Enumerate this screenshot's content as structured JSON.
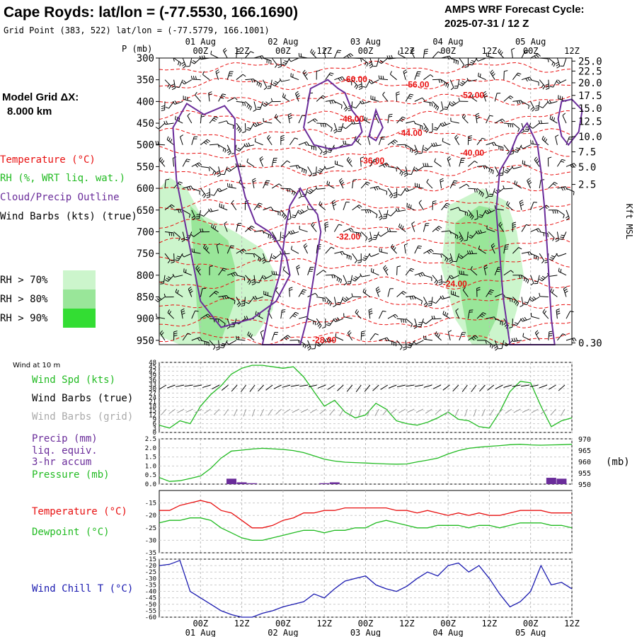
{
  "header": {
    "title": "Cape Royds:  lat/lon = (-77.5530, 166.1690)",
    "grid_point": "Grid Point (383, 522) lat/lon = (-77.5779, 166.1001)",
    "cycle_line1": "AMPS WRF Forecast Cycle:",
    "cycle_line2": "2025-07-31 / 12  Z"
  },
  "time_axis": {
    "ticks": [
      "00Z",
      "12Z",
      "00Z",
      "12Z",
      "00Z",
      "12Z",
      "00Z",
      "12Z",
      "00Z",
      "12Z"
    ],
    "dates": [
      "01 Aug",
      "02 Aug",
      "03 Aug",
      "04 Aug",
      "05 Aug"
    ],
    "hours_from_start": [
      12,
      24,
      36,
      48,
      60,
      72,
      84,
      96,
      108,
      120
    ],
    "date_hours": [
      12,
      36,
      60,
      84,
      108
    ],
    "start": "2025-07-31 12Z",
    "end": "2025-08-05 12Z"
  },
  "legend": {
    "model_grid": "Model Grid ΔX:",
    "model_dx": "8.000 km",
    "temperature": "Temperature (°C)",
    "rh": "RH (%, WRT liq. wat.)",
    "cloud": "Cloud/Precip Outline",
    "barbs": "Wind Barbs (kts) (true)",
    "rh_levels": [
      {
        "label": "RH > 70%",
        "color": "#ccf5cc"
      },
      {
        "label": "RH > 80%",
        "color": "#99e699"
      },
      {
        "label": "RH > 90%",
        "color": "#33dd33"
      }
    ]
  },
  "colors": {
    "temperature": "#e81010",
    "rh": "#22bb22",
    "cloud": "#6a2c9a",
    "wind_speed": "#22bb22",
    "barbs_true": "#000000",
    "barbs_grid": "#999999",
    "precip": "#6a2c9a",
    "pressure": "#22bb22",
    "dewpoint": "#22bb22",
    "wind_chill": "#1a1ab0"
  },
  "chart_data": [
    {
      "type": "line",
      "panel": "cross_section",
      "ylabel": "P (mb)",
      "ylabel_right": "Kft MSL",
      "y_ticks": [
        300,
        350,
        400,
        450,
        500,
        550,
        600,
        650,
        700,
        750,
        800,
        850,
        900,
        950
      ],
      "ylim": [
        300,
        960
      ],
      "kft_ticks": [
        {
          "p": 307,
          "label": "25.0"
        },
        {
          "p": 330,
          "label": "22.5"
        },
        {
          "p": 357,
          "label": "20.0"
        },
        {
          "p": 386,
          "label": "17.5"
        },
        {
          "p": 416,
          "label": "15.0"
        },
        {
          "p": 446,
          "label": "12.5"
        },
        {
          "p": 481,
          "label": "10.0"
        },
        {
          "p": 516,
          "label": "7.5"
        },
        {
          "p": 551,
          "label": "5.0"
        },
        {
          "p": 591,
          "label": "2.5"
        },
        {
          "p": 956,
          "label": "0.30"
        }
      ],
      "temperature_labels": [
        {
          "t": 57,
          "p": 355,
          "label": "-60.00"
        },
        {
          "t": 75,
          "p": 368,
          "label": "-56.00"
        },
        {
          "t": 91,
          "p": 392,
          "label": "-52.00"
        },
        {
          "t": 56,
          "p": 447,
          "label": "-48.00"
        },
        {
          "t": 73,
          "p": 479,
          "label": "-44.00"
        },
        {
          "t": 91,
          "p": 525,
          "label": "-40.00"
        },
        {
          "t": 62,
          "p": 543,
          "label": "-36.00"
        },
        {
          "t": 55,
          "p": 718,
          "label": "-32.00"
        },
        {
          "t": 86,
          "p": 826,
          "label": "-24.00"
        },
        {
          "t": 48,
          "p": 956,
          "label": "-28.00"
        }
      ],
      "rh_regions": [
        {
          "level": 70,
          "points": [
            [
              0,
              600
            ],
            [
              3,
              575
            ],
            [
              8,
              600
            ],
            [
              12,
              660
            ],
            [
              22,
              700
            ],
            [
              30,
              740
            ],
            [
              34,
              800
            ],
            [
              33,
              880
            ],
            [
              28,
              940
            ],
            [
              16,
              960
            ],
            [
              6,
              960
            ],
            [
              0,
              940
            ]
          ]
        },
        {
          "level": 80,
          "points": [
            [
              9,
              640
            ],
            [
              14,
              680
            ],
            [
              20,
              720
            ],
            [
              22,
              780
            ],
            [
              22,
              860
            ],
            [
              18,
              950
            ],
            [
              12,
              950
            ],
            [
              11,
              880
            ],
            [
              10,
              760
            ]
          ]
        },
        {
          "level": 70,
          "points": [
            [
              84,
              640
            ],
            [
              94,
              600
            ],
            [
              101,
              630
            ],
            [
              104,
              700
            ],
            [
              106,
              800
            ],
            [
              104,
              880
            ],
            [
              101,
              960
            ],
            [
              91,
              960
            ],
            [
              86,
              900
            ],
            [
              82,
              780
            ]
          ]
        },
        {
          "level": 80,
          "points": [
            [
              86,
              680
            ],
            [
              93,
              640
            ],
            [
              99,
              650
            ],
            [
              101,
              720
            ],
            [
              100,
              800
            ],
            [
              98,
              900
            ],
            [
              95,
              950
            ],
            [
              90,
              950
            ],
            [
              88,
              860
            ],
            [
              86,
              760
            ]
          ]
        }
      ],
      "cloud_outlines": [
        [
          [
            4,
            460
          ],
          [
            8,
            405
          ],
          [
            13,
            430
          ],
          [
            19,
            410
          ],
          [
            22,
            440
          ],
          [
            22,
            520
          ],
          [
            25,
            620
          ],
          [
            28,
            680
          ],
          [
            32,
            700
          ],
          [
            34,
            720
          ],
          [
            37,
            760
          ],
          [
            38,
            800
          ],
          [
            34,
            860
          ],
          [
            27,
            900
          ],
          [
            18,
            920
          ],
          [
            12,
            860
          ],
          [
            8,
            700
          ],
          [
            5,
            580
          ]
        ],
        [
          [
            42,
            460
          ],
          [
            44,
            370
          ],
          [
            49,
            350
          ],
          [
            52,
            370
          ],
          [
            54,
            380
          ],
          [
            56,
            420
          ],
          [
            58,
            440
          ],
          [
            59,
            470
          ],
          [
            56,
            500
          ],
          [
            50,
            510
          ],
          [
            45,
            500
          ]
        ],
        [
          [
            30,
            960
          ],
          [
            32,
            880
          ],
          [
            35,
            800
          ],
          [
            36,
            740
          ],
          [
            37,
            680
          ],
          [
            38,
            640
          ],
          [
            41,
            600
          ],
          [
            44,
            640
          ],
          [
            46,
            660
          ],
          [
            47,
            700
          ],
          [
            45,
            800
          ],
          [
            43,
            900
          ],
          [
            41,
            960
          ]
        ],
        [
          [
            63,
            420
          ],
          [
            64,
            440
          ],
          [
            65,
            460
          ],
          [
            63,
            490
          ],
          [
            61,
            480
          ],
          [
            62,
            450
          ]
        ],
        [
          [
            102,
            960
          ],
          [
            100,
            850
          ],
          [
            99,
            750
          ],
          [
            98,
            650
          ],
          [
            99,
            560
          ],
          [
            102,
            520
          ],
          [
            104,
            480
          ],
          [
            107,
            450
          ],
          [
            110,
            500
          ],
          [
            111,
            560
          ],
          [
            112,
            640
          ],
          [
            113,
            760
          ],
          [
            114,
            900
          ],
          [
            115,
            960
          ]
        ],
        [
          [
            116,
            440
          ],
          [
            117,
            400
          ],
          [
            120,
            395
          ],
          [
            123,
            420
          ],
          [
            122,
            470
          ],
          [
            119,
            500
          ],
          [
            117,
            480
          ]
        ]
      ]
    },
    {
      "type": "line",
      "panel": "wind_10m",
      "title": "Wind at 10 m",
      "series": [
        {
          "name": "Wind Spd (kts)",
          "x": [
            0,
            3,
            6,
            9,
            12,
            15,
            18,
            21,
            24,
            27,
            30,
            33,
            36,
            39,
            42,
            45,
            48,
            51,
            54,
            57,
            60,
            63,
            66,
            69,
            72,
            75,
            78,
            81,
            84,
            87,
            90,
            93,
            96,
            99,
            102,
            105,
            108,
            111,
            114,
            117,
            120
          ],
          "values": [
            5,
            3,
            8,
            6,
            18,
            26,
            32,
            40,
            44,
            46,
            46,
            45,
            44,
            45,
            38,
            28,
            18,
            22,
            14,
            10,
            12,
            20,
            16,
            8,
            6,
            5,
            7,
            10,
            14,
            9,
            8,
            4,
            3,
            14,
            28,
            35,
            34,
            18,
            4,
            8,
            10
          ]
        }
      ],
      "barb_labels": [
        "Wind Barbs (true)",
        "Wind Barbs (grid)"
      ],
      "y_ticks": [
        "48",
        "45",
        "42",
        "39",
        "36",
        "33",
        "30",
        "27",
        "24",
        "21",
        "18",
        "15",
        "12",
        "9",
        "6",
        "3",
        "0"
      ],
      "ylim": [
        0,
        48
      ]
    },
    {
      "type": "bar",
      "panel": "precip_pressure",
      "labels": [
        "Precip (mm)",
        "liq. equiv.",
        "3-hr accum",
        "Pressure (mb)"
      ],
      "precip": {
        "x": [
          21,
          24,
          27,
          48,
          51,
          120
        ],
        "values": [
          0.3,
          0.1,
          0.05,
          0.05,
          0.1,
          0.0
        ]
      },
      "precip_extra": {
        "x": [
          114,
          117
        ],
        "values": [
          0.35,
          0.3
        ]
      },
      "pressure": {
        "x": [
          0,
          3,
          6,
          9,
          12,
          15,
          18,
          21,
          24,
          27,
          30,
          33,
          36,
          39,
          42,
          45,
          48,
          51,
          54,
          57,
          60,
          63,
          66,
          69,
          72,
          75,
          78,
          81,
          84,
          87,
          90,
          93,
          96,
          99,
          102,
          105,
          108,
          111,
          114,
          117,
          120
        ],
        "values": [
          952.9,
          951.2,
          951.5,
          952.5,
          953.6,
          957.0,
          961.5,
          964.6,
          965.0,
          965.5,
          965.8,
          965.6,
          965.3,
          964.8,
          963.9,
          962.5,
          961.0,
          960.2,
          959.7,
          959.5,
          959.3,
          959.1,
          958.9,
          958.8,
          958.9,
          959.8,
          960.6,
          961.5,
          963.3,
          964.8,
          965.8,
          966.3,
          966.7,
          967.0,
          967.4,
          967.6,
          967.3,
          967.2,
          967.3,
          967.4,
          967.6
        ]
      },
      "y_ticks_left": [
        "2.5",
        "2.0",
        "1.5",
        "1.0",
        "0.5",
        "0.0"
      ],
      "y_ticks_right": [
        "970",
        "965",
        "960",
        "955",
        "950"
      ],
      "ylim_left": [
        0,
        2.5
      ],
      "ylim_right": [
        950,
        970
      ],
      "right_unit": "(mb)"
    },
    {
      "type": "line",
      "panel": "temp_dewpoint",
      "series": [
        {
          "name": "Temperature (°C)",
          "x": [
            0,
            3,
            6,
            9,
            12,
            15,
            18,
            21,
            24,
            27,
            30,
            33,
            36,
            39,
            42,
            45,
            48,
            51,
            54,
            57,
            60,
            63,
            66,
            69,
            72,
            75,
            78,
            81,
            84,
            87,
            90,
            93,
            96,
            99,
            102,
            105,
            108,
            111,
            114,
            117,
            120
          ],
          "values": [
            -18,
            -18,
            -16,
            -15,
            -14,
            -15,
            -18,
            -19,
            -22,
            -25,
            -25,
            -24,
            -22,
            -21,
            -19,
            -19,
            -18,
            -18,
            -17,
            -17,
            -17,
            -17,
            -17,
            -18,
            -18,
            -19,
            -18,
            -19,
            -20,
            -19,
            -20,
            -19,
            -20,
            -20,
            -19,
            -18,
            -18,
            -18,
            -19,
            -19,
            -19
          ]
        },
        {
          "name": "Dewpoint (°C)",
          "x": [
            0,
            3,
            6,
            9,
            12,
            15,
            18,
            21,
            24,
            27,
            30,
            33,
            36,
            39,
            42,
            45,
            48,
            51,
            54,
            57,
            60,
            63,
            66,
            69,
            72,
            75,
            78,
            81,
            84,
            87,
            90,
            93,
            96,
            99,
            102,
            105,
            108,
            111,
            114,
            117,
            120
          ],
          "values": [
            -23,
            -22,
            -22,
            -21,
            -21,
            -22,
            -25,
            -27,
            -29,
            -30,
            -30,
            -29,
            -28,
            -27,
            -26,
            -26,
            -27,
            -26,
            -26,
            -25,
            -25,
            -23,
            -22,
            -23,
            -24,
            -25,
            -25,
            -24,
            -24,
            -24,
            -25,
            -24,
            -24,
            -25,
            -24,
            -23,
            -23,
            -23,
            -24,
            -24,
            -25
          ]
        }
      ],
      "y_ticks": [
        "-15",
        "-20",
        "-25",
        "-30",
        "-35"
      ],
      "ylim": [
        -35,
        -10
      ]
    },
    {
      "type": "line",
      "panel": "wind_chill",
      "series": [
        {
          "name": "Wind Chill T (°C)",
          "x": [
            0,
            3,
            6,
            9,
            12,
            15,
            18,
            21,
            24,
            27,
            30,
            33,
            36,
            39,
            42,
            45,
            48,
            51,
            54,
            57,
            60,
            63,
            66,
            69,
            72,
            75,
            78,
            81,
            84,
            87,
            90,
            93,
            96,
            99,
            102,
            105,
            108,
            111,
            114,
            117,
            120
          ],
          "values": [
            -20,
            -19,
            -16,
            -40,
            -45,
            -50,
            -55,
            -58,
            -60,
            -60,
            -57,
            -55,
            -52,
            -50,
            -48,
            -42,
            -45,
            -38,
            -32,
            -30,
            -28,
            -35,
            -38,
            -40,
            -36,
            -30,
            -25,
            -28,
            -20,
            -18,
            -25,
            -20,
            -30,
            -42,
            -52,
            -48,
            -40,
            -20,
            -35,
            -33,
            -38
          ]
        }
      ],
      "y_ticks": [
        "-15",
        "-20",
        "-25",
        "-30",
        "-35",
        "-40",
        "-45",
        "-50",
        "-55",
        "-60"
      ],
      "ylim": [
        -60,
        -15
      ]
    }
  ]
}
